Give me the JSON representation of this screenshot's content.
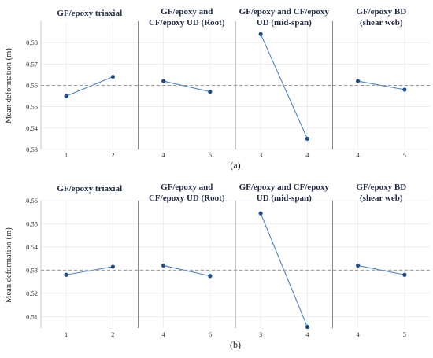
{
  "chart_data": [
    {
      "type": "line",
      "caption": "(a)",
      "ylabel": "Mean deformation (m)",
      "ylim": [
        0.53,
        0.59
      ],
      "yticks": [
        0.53,
        0.54,
        0.55,
        0.56,
        0.57,
        0.58
      ],
      "reference_line": 0.56,
      "grid": true,
      "panels": [
        {
          "title": [
            "GF/epoxy triaxial"
          ],
          "x": [
            "1",
            "2"
          ],
          "values": [
            0.555,
            0.564
          ]
        },
        {
          "title": [
            "GF/epoxy and",
            "CF/epoxy UD (Root)"
          ],
          "x": [
            "4",
            "6"
          ],
          "values": [
            0.562,
            0.557
          ]
        },
        {
          "title": [
            "GF/epoxy and CF/epoxy",
            "UD (mid-span)"
          ],
          "x": [
            "3",
            "4"
          ],
          "values": [
            0.584,
            0.535
          ]
        },
        {
          "title": [
            "GF/epoxy BD",
            "(shear web)"
          ],
          "x": [
            "4",
            "5"
          ],
          "values": [
            0.562,
            0.558
          ]
        }
      ]
    },
    {
      "type": "line",
      "caption": "(b)",
      "ylabel": "Mean deformation (m)",
      "ylim": [
        0.505,
        0.56
      ],
      "yticks": [
        0.51,
        0.52,
        0.53,
        0.54,
        0.55,
        0.56
      ],
      "reference_line": 0.53,
      "grid": true,
      "panels": [
        {
          "title": [
            "GF/epoxy triaxial"
          ],
          "x": [
            "1",
            "2"
          ],
          "values": [
            0.528,
            0.5315
          ]
        },
        {
          "title": [
            "GF/epoxy and",
            "CF/epoxy UD (Root)"
          ],
          "x": [
            "4",
            "6"
          ],
          "values": [
            0.532,
            0.5275
          ]
        },
        {
          "title": [
            "GF/epoxy and CF/epoxy",
            "UD (mid-span)"
          ],
          "x": [
            "3",
            "4"
          ],
          "values": [
            0.5545,
            0.5055
          ]
        },
        {
          "title": [
            "GF/epoxy BD",
            "(shear web)"
          ],
          "x": [
            "4",
            "5"
          ],
          "values": [
            0.532,
            0.528
          ]
        }
      ]
    }
  ],
  "colors": {
    "line": "#4a86c5",
    "marker": "#1f4e8f",
    "reference": "#999999",
    "grid": "#e3e3e3",
    "divider": "#888888",
    "title": "#1f2a44"
  }
}
